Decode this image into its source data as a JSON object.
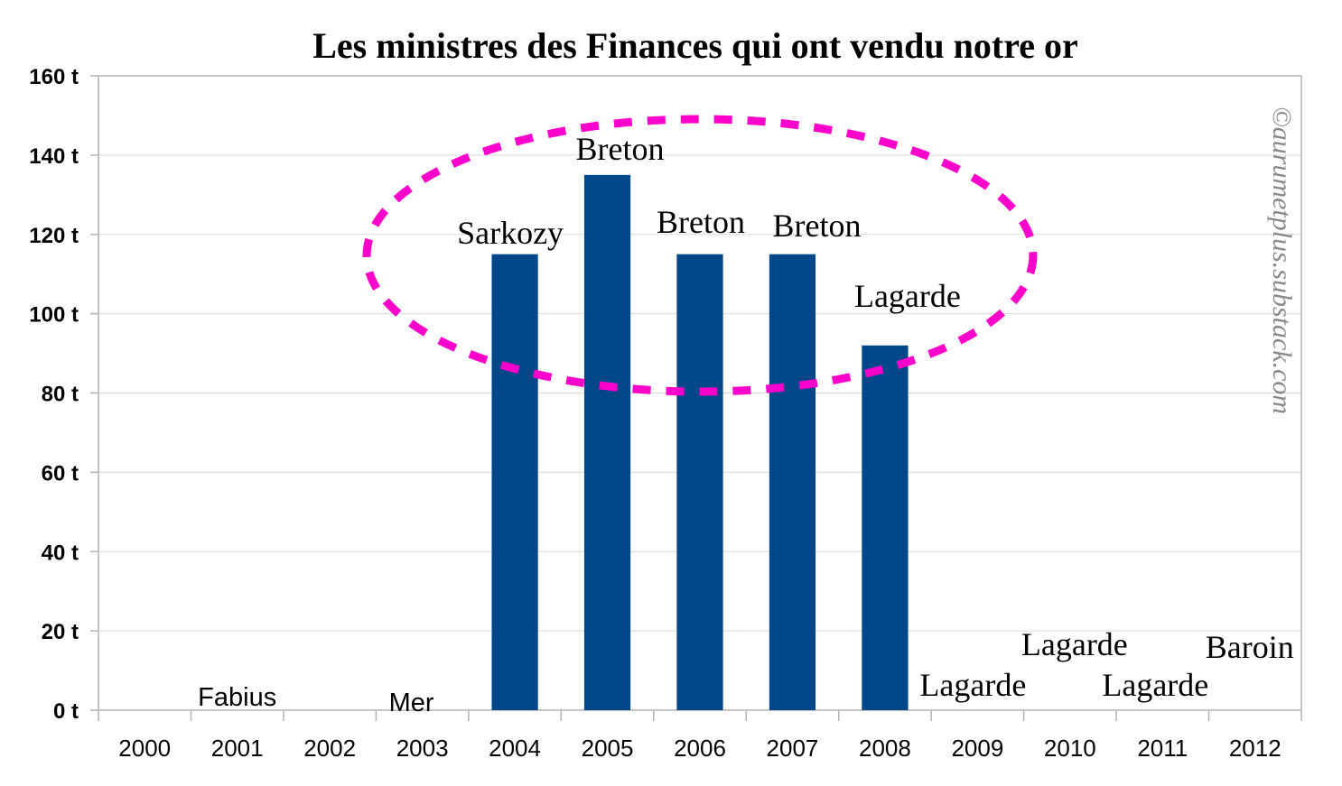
{
  "chart_data": {
    "type": "bar",
    "title": "Les ministres des Finances qui ont vendu notre or",
    "categories": [
      "2000",
      "2001",
      "2002",
      "2003",
      "2004",
      "2005",
      "2006",
      "2007",
      "2008",
      "2009",
      "2010",
      "2011",
      "2012"
    ],
    "values": [
      0,
      0,
      0,
      0,
      115,
      135,
      115,
      115,
      92,
      0,
      0,
      0,
      0
    ],
    "minister_labels": [
      "",
      "Fabius",
      "",
      "Mer",
      "Sarkozy",
      "Breton",
      "Breton",
      "Breton",
      "Lagarde",
      "Lagarde",
      "Lagarde",
      "Lagarde",
      "Baroin"
    ],
    "ylim": [
      0,
      160
    ],
    "yticks": [
      0,
      20,
      40,
      60,
      80,
      100,
      120,
      140,
      160
    ],
    "ytick_labels": [
      "0 t",
      "20 t",
      "40 t",
      "60 t",
      "80 t",
      "100 t",
      "120 t",
      "140 t",
      "160 t"
    ],
    "xlabel": "",
    "ylabel": "",
    "grid": true,
    "bar_color": "#00478a",
    "annotation": {
      "shape": "dashed-ellipse",
      "color": "#ff00cc",
      "covers": [
        "2004",
        "2005",
        "2006",
        "2007",
        "2008"
      ]
    }
  },
  "watermark": "©aurumetplus.substack.com"
}
